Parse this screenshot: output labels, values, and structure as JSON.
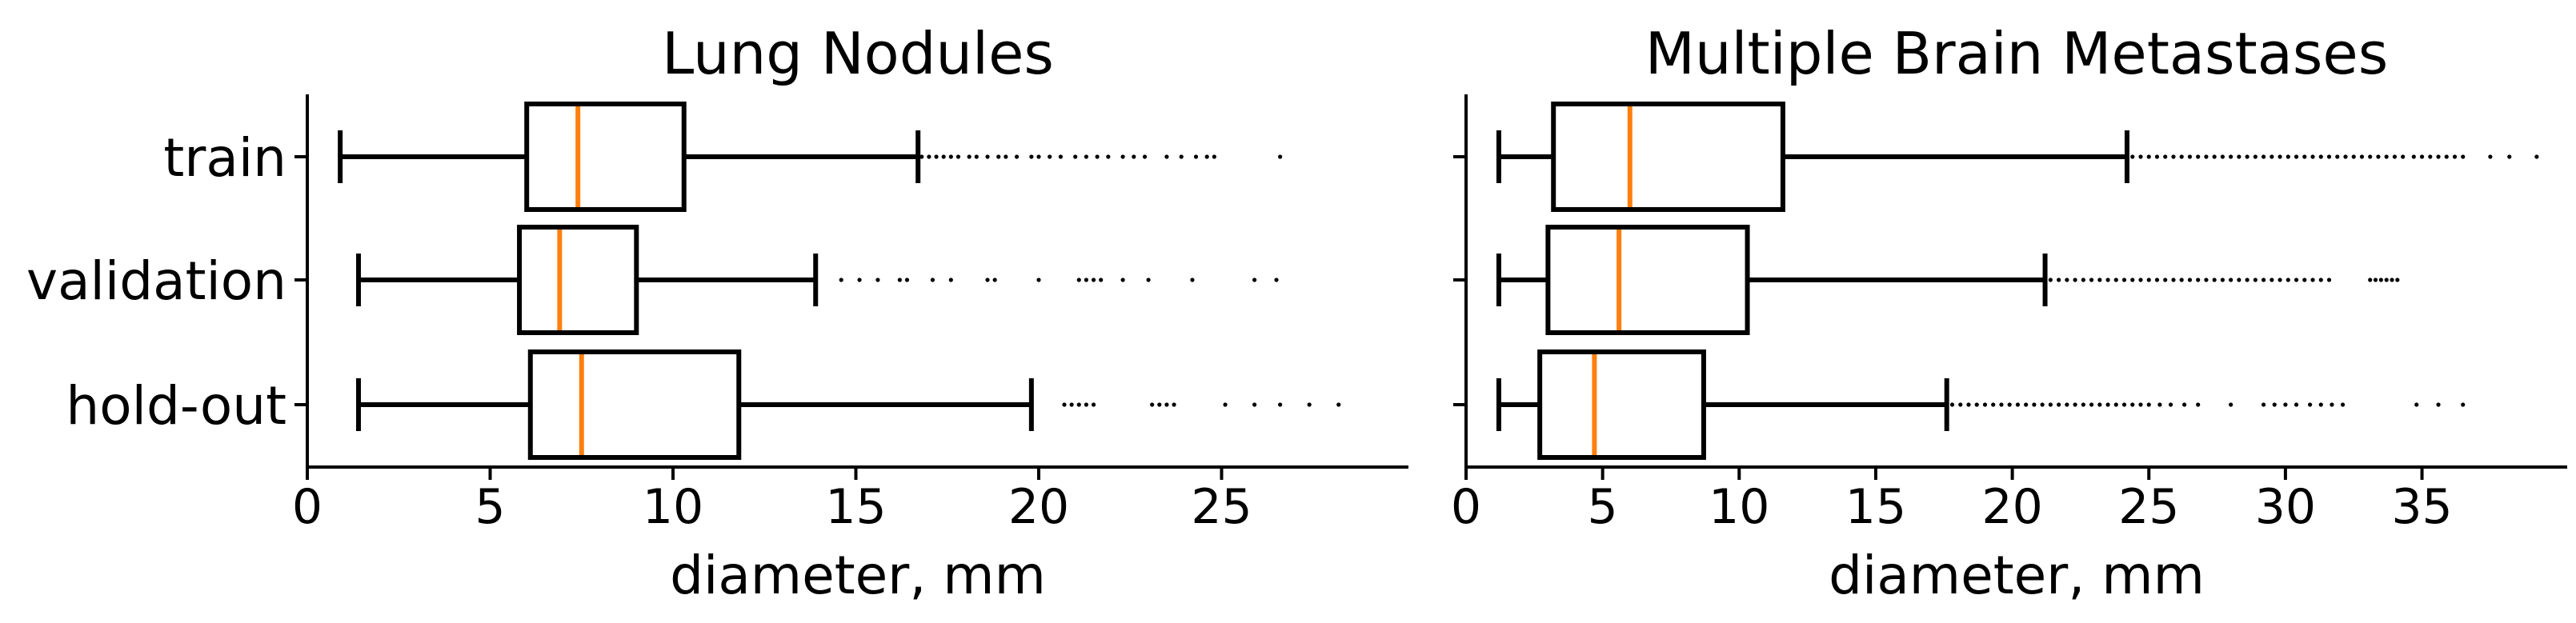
{
  "figure": {
    "background": "#ffffff",
    "box_color": "#000000",
    "median_color": "#ff7f0e",
    "flier_color": "#000000"
  },
  "chart_data": [
    {
      "type": "box",
      "title": "Lung Nodules",
      "xlabel": "diameter, mm",
      "ylabel": "",
      "orientation": "horizontal",
      "xlim": [
        0,
        30
      ],
      "xticks": [
        0,
        5,
        10,
        15,
        20,
        25
      ],
      "xtick_labels": [
        "0",
        "5",
        "10",
        "15",
        "20",
        "25"
      ],
      "categories": [
        "train",
        "validation",
        "hold-out"
      ],
      "boxes": [
        {
          "category": "train",
          "whisker_low": 0.9,
          "q1": 6.0,
          "median": 7.4,
          "q3": 10.3,
          "whisker_high": 16.7,
          "outliers": [
            16.8,
            17.0,
            17.2,
            17.4,
            17.6,
            17.8,
            18.1,
            18.3,
            18.6,
            18.9,
            19.1,
            19.4,
            19.8,
            20.0,
            20.3,
            20.6,
            21.0,
            21.3,
            21.6,
            21.9,
            22.3,
            22.6,
            22.9,
            23.5,
            23.9,
            24.3,
            24.6,
            24.8,
            26.6
          ]
        },
        {
          "category": "validation",
          "whisker_low": 1.4,
          "q1": 5.8,
          "median": 6.9,
          "q3": 9.0,
          "whisker_high": 13.9,
          "outliers": [
            14.6,
            15.1,
            15.6,
            16.2,
            16.4,
            17.1,
            17.6,
            18.6,
            18.8,
            20.0,
            21.1,
            21.3,
            21.5,
            21.7,
            22.3,
            23.0,
            24.2,
            25.9,
            26.5
          ]
        },
        {
          "category": "hold-out",
          "whisker_low": 1.4,
          "q1": 6.1,
          "median": 7.5,
          "q3": 11.8,
          "whisker_high": 19.8,
          "outliers": [
            20.7,
            20.9,
            21.1,
            21.3,
            21.5,
            23.1,
            23.3,
            23.5,
            23.7,
            25.1,
            25.9,
            26.6,
            27.4,
            28.2
          ]
        }
      ],
      "grid": false
    },
    {
      "type": "box",
      "title": "Multiple Brain Metastases",
      "xlabel": "diameter, mm",
      "ylabel": "",
      "orientation": "horizontal",
      "xlim": [
        0,
        40
      ],
      "xticks": [
        0,
        5,
        10,
        15,
        20,
        25,
        30,
        35
      ],
      "xtick_labels": [
        "0",
        "5",
        "10",
        "15",
        "20",
        "25",
        "30",
        "35"
      ],
      "categories": [
        "train",
        "validation",
        "hold-out"
      ],
      "boxes": [
        {
          "category": "train",
          "whisker_low": 1.2,
          "q1": 3.2,
          "median": 6.0,
          "q3": 11.6,
          "whisker_high": 24.2,
          "outliers": [
            24.4,
            24.7,
            25.0,
            25.3,
            25.6,
            25.9,
            26.2,
            26.5,
            26.8,
            27.1,
            27.4,
            27.7,
            28.0,
            28.3,
            28.6,
            28.9,
            29.2,
            29.5,
            29.8,
            30.1,
            30.4,
            30.7,
            31.0,
            31.3,
            31.6,
            31.9,
            32.2,
            32.5,
            32.8,
            33.1,
            33.4,
            33.7,
            34.0,
            34.3,
            34.7,
            35.0,
            35.3,
            35.6,
            35.9,
            36.2,
            36.5,
            37.5,
            38.2,
            39.2
          ]
        },
        {
          "category": "validation",
          "whisker_low": 1.2,
          "q1": 3.0,
          "median": 5.6,
          "q3": 10.3,
          "whisker_high": 21.2,
          "outliers": [
            21.4,
            21.7,
            22.0,
            22.3,
            22.6,
            22.9,
            23.2,
            23.5,
            23.8,
            24.1,
            24.4,
            24.7,
            25.0,
            25.3,
            25.6,
            25.9,
            26.2,
            26.5,
            26.8,
            27.1,
            27.4,
            27.7,
            28.0,
            28.3,
            28.6,
            28.9,
            29.2,
            29.5,
            29.8,
            30.1,
            30.4,
            30.7,
            31.0,
            31.3,
            31.6,
            33.1,
            33.3,
            33.5,
            33.7,
            33.9,
            34.1
          ]
        },
        {
          "category": "hold-out",
          "whisker_low": 1.2,
          "q1": 2.7,
          "median": 4.7,
          "q3": 8.7,
          "whisker_high": 17.6,
          "outliers": [
            17.8,
            18.1,
            18.4,
            18.7,
            19.0,
            19.3,
            19.6,
            19.9,
            20.2,
            20.5,
            20.8,
            21.1,
            21.4,
            21.7,
            22.0,
            22.3,
            22.6,
            22.9,
            23.2,
            23.5,
            23.8,
            24.1,
            24.4,
            24.7,
            25.0,
            25.4,
            25.8,
            26.3,
            26.8,
            28.0,
            29.2,
            29.6,
            30.0,
            30.4,
            30.9,
            31.3,
            31.7,
            32.1,
            34.8,
            35.6,
            36.5
          ]
        }
      ],
      "grid": false
    }
  ]
}
